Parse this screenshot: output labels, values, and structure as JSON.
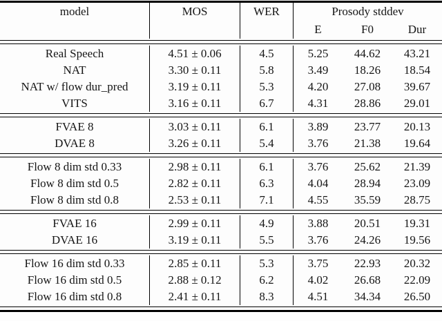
{
  "table": {
    "header": {
      "model": "model",
      "mos": "MOS",
      "wer": "WER",
      "prosody_group": "Prosody stddev",
      "sub": {
        "e": "E",
        "f0": "F0",
        "dur": "Dur"
      }
    },
    "groups": [
      {
        "rows": [
          {
            "model": "Real Speech",
            "mos": "4.51 ± 0.06",
            "wer": "4.5",
            "e": "5.25",
            "f0": "44.62",
            "dur": "43.21"
          },
          {
            "model": "NAT",
            "mos": "3.30 ± 0.11",
            "wer": "5.8",
            "e": "3.49",
            "f0": "18.26",
            "dur": "18.54"
          },
          {
            "model": "NAT w/ flow dur_pred",
            "mos": "3.19 ± 0.11",
            "wer": "5.3",
            "e": "4.20",
            "f0": "27.08",
            "dur": "39.67"
          },
          {
            "model": "VITS",
            "mos": "3.16 ± 0.11",
            "wer": "6.7",
            "e": "4.31",
            "f0": "28.86",
            "dur": "29.01"
          }
        ]
      },
      {
        "rows": [
          {
            "model": "FVAE 8",
            "mos": "3.03 ± 0.11",
            "wer": "6.1",
            "e": "3.89",
            "f0": "23.77",
            "dur": "20.13"
          },
          {
            "model": "DVAE 8",
            "mos": "3.26 ± 0.11",
            "wer": "5.4",
            "e": "3.76",
            "f0": "21.38",
            "dur": "19.64"
          }
        ]
      },
      {
        "rows": [
          {
            "model": "Flow 8 dim std 0.33",
            "mos": "2.98 ± 0.11",
            "wer": "6.1",
            "e": "3.76",
            "f0": "25.62",
            "dur": "21.39"
          },
          {
            "model": "Flow 8 dim std 0.5",
            "mos": "2.82 ± 0.11",
            "wer": "6.3",
            "e": "4.04",
            "f0": "28.94",
            "dur": "23.09"
          },
          {
            "model": "Flow 8 dim std 0.8",
            "mos": "2.53 ± 0.11",
            "wer": "7.1",
            "e": "4.55",
            "f0": "35.59",
            "dur": "28.75"
          }
        ]
      },
      {
        "rows": [
          {
            "model": "FVAE 16",
            "mos": "2.99 ± 0.11",
            "wer": "4.9",
            "e": "3.88",
            "f0": "20.51",
            "dur": "19.31"
          },
          {
            "model": "DVAE 16",
            "mos": "3.19 ± 0.11",
            "wer": "5.5",
            "e": "3.76",
            "f0": "24.26",
            "dur": "19.56"
          }
        ]
      },
      {
        "rows": [
          {
            "model": "Flow 16 dim std 0.33",
            "mos": "2.85 ± 0.11",
            "wer": "5.3",
            "e": "3.75",
            "f0": "22.93",
            "dur": "20.32"
          },
          {
            "model": "Flow 16 dim std 0.5",
            "mos": "2.88 ± 0.12",
            "wer": "6.2",
            "e": "4.02",
            "f0": "26.68",
            "dur": "22.09"
          },
          {
            "model": "Flow 16 dim std 0.8",
            "mos": "2.41 ± 0.11",
            "wer": "8.3",
            "e": "4.51",
            "f0": "34.34",
            "dur": "26.50"
          }
        ]
      }
    ]
  }
}
